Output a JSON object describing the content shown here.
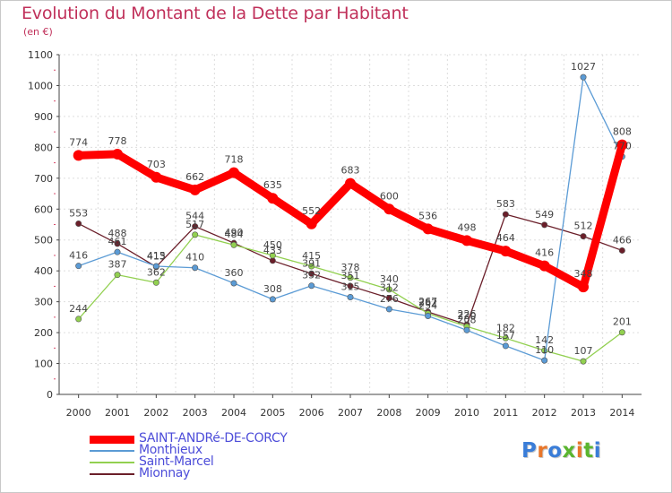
{
  "title": "Evolution du Montant de la Dette par Habitant",
  "unit_label": "(en €)",
  "logo": {
    "text": "Proxiti",
    "letter_colors": [
      "#3a7dd8",
      "#e8762a",
      "#3a7dd8",
      "#5ab52f",
      "#e8762a",
      "#5ab52f",
      "#3a7dd8"
    ]
  },
  "chart_data": {
    "type": "line",
    "title": "Evolution du Montant de la Dette par Habitant",
    "ylabel": "(en €)",
    "xlabel": "",
    "x": [
      2000,
      2001,
      2002,
      2003,
      2004,
      2005,
      2006,
      2007,
      2008,
      2009,
      2010,
      2011,
      2012,
      2013,
      2014
    ],
    "ylim": [
      0,
      1100
    ],
    "yticks": [
      0,
      100,
      200,
      300,
      400,
      500,
      600,
      700,
      800,
      900,
      1000,
      1100
    ],
    "grid": true,
    "legend_position": "bottom-left",
    "series": [
      {
        "name": "SAINT-ANDRé-DE-CORCY",
        "color": "#ff0000",
        "values": [
          774,
          778,
          703,
          662,
          718,
          635,
          552,
          683,
          600,
          536,
          498,
          464,
          416,
          348,
          808
        ]
      },
      {
        "name": "Monthieux",
        "color": "#5b9bd5",
        "values": [
          416,
          461,
          415,
          410,
          360,
          308,
          352,
          315,
          276,
          254,
          208,
          157,
          110,
          1027,
          770
        ]
      },
      {
        "name": "Saint-Marcel",
        "color": "#92d050",
        "values": [
          244,
          387,
          362,
          517,
          484,
          450,
          415,
          378,
          340,
          262,
          220,
          182,
          142,
          107,
          201
        ]
      },
      {
        "name": "Mionnay",
        "color": "#6b1f2a",
        "values": [
          553,
          488,
          413,
          544,
          490,
          433,
          391,
          351,
          312,
          267,
          226,
          583,
          549,
          512,
          466
        ]
      }
    ]
  }
}
